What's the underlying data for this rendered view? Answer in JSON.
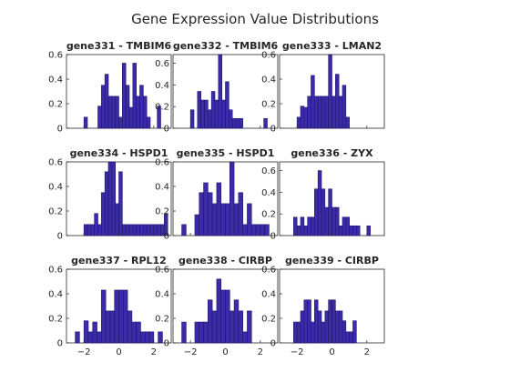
{
  "chart_data": {
    "type": "bar",
    "title": "Gene Expression Value Distributions",
    "x_ticks": [
      -2,
      0,
      2
    ],
    "panels": [
      {
        "title": "gene331 - TMBIM6",
        "xlim": [
          -3,
          3
        ],
        "ylim": [
          0,
          0.6
        ],
        "yticks": [
          0,
          0.2,
          0.4,
          0.6
        ],
        "bin_start": -2.0,
        "bin_width": 0.2,
        "values": [
          0.09,
          0,
          0,
          0,
          0.18,
          0.35,
          0.44,
          0.26,
          0.26,
          0.26,
          0.09,
          0.53,
          0.35,
          0.17,
          0.53,
          0.26,
          0.35,
          0.26,
          0.09,
          0,
          0,
          0.18
        ]
      },
      {
        "title": "gene332 - TMBIM6",
        "xlim": [
          -3,
          3
        ],
        "ylim": [
          0,
          0.68
        ],
        "yticks": [
          0,
          0.2,
          0.4,
          0.6
        ],
        "bin_start": -2.0,
        "bin_width": 0.2,
        "values": [
          0.17,
          0,
          0.34,
          0.26,
          0.26,
          0.17,
          0.34,
          0.26,
          0.68,
          0.26,
          0.43,
          0.17,
          0.09,
          0.09,
          0.09,
          0,
          0,
          0,
          0,
          0,
          0,
          0.09
        ]
      },
      {
        "title": "gene333 - LMAN2",
        "xlim": [
          -3,
          3
        ],
        "ylim": [
          0,
          0.6
        ],
        "yticks": [
          0,
          0.2,
          0.4,
          0.6
        ],
        "bin_start": -2.0,
        "bin_width": 0.2,
        "values": [
          0.09,
          0.18,
          0.17,
          0.26,
          0.43,
          0.26,
          0.26,
          0.26,
          0.26,
          0.6,
          0.26,
          0.44,
          0.26,
          0.35,
          0.09
        ]
      },
      {
        "title": "gene334 - HSPD1",
        "xlim": [
          -3,
          3
        ],
        "ylim": [
          0,
          0.6
        ],
        "yticks": [
          0,
          0.2,
          0.4,
          0.6
        ],
        "bin_start": -2.0,
        "bin_width": 0.2,
        "values": [
          0.09,
          0.09,
          0.09,
          0.18,
          0.09,
          0.35,
          0.52,
          0.6,
          0.6,
          0.26,
          0.52,
          0.09,
          0.09,
          0.09,
          0.09,
          0.09,
          0.09,
          0.09,
          0.09,
          0.09,
          0.09,
          0.09,
          0.09,
          0.18
        ]
      },
      {
        "title": "gene335 - HSPD1",
        "xlim": [
          -3,
          3
        ],
        "ylim": [
          0,
          0.6
        ],
        "yticks": [
          0,
          0.2,
          0.4,
          0.6
        ],
        "bin_start": -2.5,
        "bin_width": 0.25,
        "values": [
          0.09,
          0,
          0,
          0.17,
          0.35,
          0.43,
          0.35,
          0.26,
          0.43,
          0.26,
          0.26,
          0.6,
          0.26,
          0.35,
          0.09,
          0.26,
          0.09,
          0.09,
          0.09,
          0.09
        ]
      },
      {
        "title": "gene336 - ZYX",
        "xlim": [
          -3,
          3
        ],
        "ylim": [
          0,
          0.68
        ],
        "yticks": [
          0,
          0.2,
          0.4,
          0.6
        ],
        "bin_start": -2.2,
        "bin_width": 0.2,
        "values": [
          0.17,
          0.09,
          0.17,
          0.09,
          0.17,
          0.17,
          0.43,
          0.6,
          0.43,
          0.26,
          0.43,
          0.26,
          0.26,
          0.09,
          0.17,
          0.17,
          0.09,
          0.09,
          0.09,
          0,
          0,
          0.09
        ]
      },
      {
        "title": "gene337 - RPL12",
        "xlim": [
          -3,
          3
        ],
        "ylim": [
          0,
          0.6
        ],
        "yticks": [
          0,
          0.2,
          0.4,
          0.6
        ],
        "bin_start": -2.5,
        "bin_width": 0.25,
        "values": [
          0.09,
          0,
          0.18,
          0.09,
          0.17,
          0.09,
          0.43,
          0.26,
          0.26,
          0.43,
          0.43,
          0.43,
          0.26,
          0.17,
          0.17,
          0.09,
          0.09,
          0.09,
          0,
          0.09
        ]
      },
      {
        "title": "gene338 - CIRBP",
        "xlim": [
          -3,
          3
        ],
        "ylim": [
          0,
          0.6
        ],
        "yticks": [
          0,
          0.2,
          0.4,
          0.6
        ],
        "bin_start": -2.5,
        "bin_width": 0.25,
        "values": [
          0.17,
          0,
          0,
          0.17,
          0.17,
          0.17,
          0.35,
          0.26,
          0.52,
          0.43,
          0.43,
          0.26,
          0.35,
          0.26,
          0.09,
          0.26
        ]
      },
      {
        "title": "gene339 - CIRBP",
        "xlim": [
          -3,
          3
        ],
        "ylim": [
          0,
          0.6
        ],
        "yticks": [
          0,
          0.2,
          0.4,
          0.6
        ],
        "bin_start": -2.2,
        "bin_width": 0.2,
        "values": [
          0.17,
          0.17,
          0.26,
          0.35,
          0.35,
          0.17,
          0.35,
          0.26,
          0.17,
          0.26,
          0.35,
          0.35,
          0.26,
          0.26,
          0.18,
          0.09,
          0.09,
          0.18
        ]
      }
    ]
  }
}
